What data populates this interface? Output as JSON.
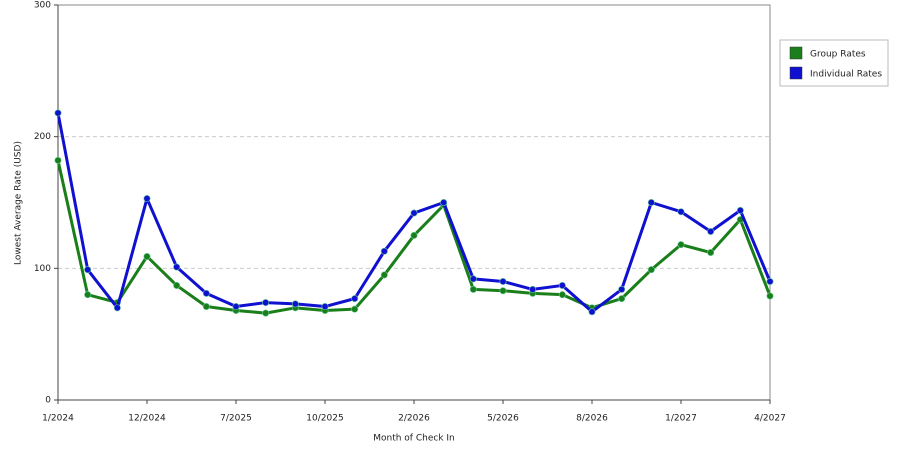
{
  "chart_data": {
    "type": "line",
    "xlabel": "Month of Check In",
    "ylabel": "Lowest Average Rate (USD)",
    "categories": [
      "1/2024",
      null,
      null,
      "12/2024",
      null,
      null,
      "7/2025",
      null,
      null,
      "10/2025",
      null,
      null,
      "2/2026",
      null,
      null,
      "5/2026",
      null,
      null,
      "8/2026",
      null,
      null,
      "1/2027",
      null,
      null,
      "4/2027"
    ],
    "series": [
      {
        "name": "Group Rates",
        "color": "#1a7f1a",
        "values": [
          182,
          80,
          74,
          109,
          87,
          71,
          68,
          66,
          70,
          68,
          69,
          95,
          125,
          148,
          84,
          83,
          81,
          80,
          70,
          77,
          99,
          118,
          112,
          137,
          79
        ]
      },
      {
        "name": "Individual Rates",
        "color": "#1010d0",
        "values": [
          218,
          99,
          70,
          153,
          101,
          81,
          71,
          74,
          73,
          71,
          77,
          113,
          142,
          150,
          92,
          90,
          84,
          87,
          67,
          84,
          150,
          143,
          128,
          144,
          90
        ]
      }
    ],
    "ylim": [
      0,
      300
    ],
    "yticks": [
      0,
      100,
      200,
      300
    ],
    "grid": true,
    "legend": "right"
  }
}
